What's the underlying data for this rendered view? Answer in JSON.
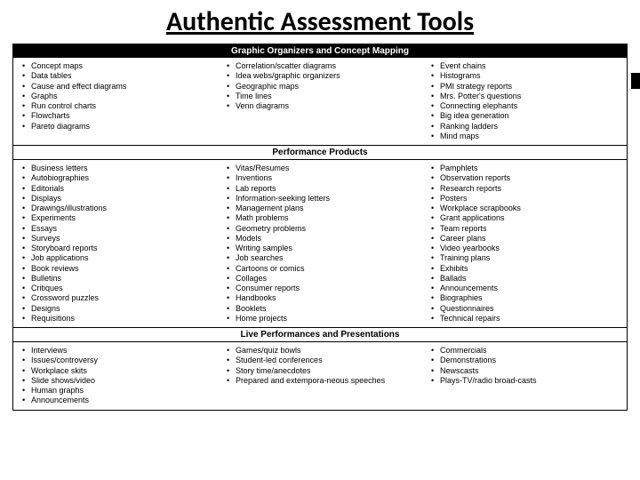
{
  "title": "Authentic Assessment Tools",
  "badge": "",
  "sections": [
    {
      "header": "Graphic Organizers and Concept Mapping",
      "header_style": "black",
      "columns": [
        [
          "Concept maps",
          "Data tables",
          "Cause and effect diagrams",
          "Graphs",
          "Run control charts",
          "Flowcharts",
          "Pareto diagrams"
        ],
        [
          "Correlation/scatter diagrams",
          "Idea webs/graphic organizers",
          "Geographic maps",
          "Time lines",
          "Venn diagrams"
        ],
        [
          "Event chains",
          "Histograms",
          "PMI strategy reports",
          "Mrs. Potter's questions",
          "Connecting elephants",
          "Big idea generation",
          "Ranking ladders",
          "Mind maps"
        ]
      ]
    },
    {
      "header": "Performance Products",
      "header_style": "white",
      "columns": [
        [
          "Business letters",
          "Autobiographies",
          "Editorials",
          "Displays",
          "Drawings/illustrations",
          "Experiments",
          "Essays",
          "Surveys",
          "Storyboard reports",
          "Job applications",
          "Book reviews",
          "Bulletins",
          "Critiques",
          "Crossword puzzles",
          "Designs",
          "Requisitions"
        ],
        [
          "Vitas/Resumes",
          "Inventions",
          "Lab reports",
          "Information-seeking letters",
          "Management plans",
          "Math problems",
          "Geometry problems",
          "Models",
          "Writing samples",
          "Job searches",
          "Cartoons or comics",
          "Collages",
          "Consumer reports",
          "Handbooks",
          "Booklets",
          "Home projects"
        ],
        [
          "Pamphlets",
          "Observation reports",
          "Research reports",
          "Posters",
          "Workplace scrapbooks",
          "Grant applications",
          "Team reports",
          "Career plans",
          "Video yearbooks",
          "Training plans",
          "Exhibits",
          "Ballads",
          "Announcements",
          "Biographies",
          "Questionnaires",
          "Technical repairs"
        ]
      ]
    },
    {
      "header": "Live Performances and Presentations",
      "header_style": "white",
      "columns": [
        [
          "Interviews",
          "Issues/controversy",
          "Workplace skits",
          "Slide shows/video",
          "Human graphs",
          "Announcements"
        ],
        [
          "Games/quiz bowls",
          "Student-led conferences",
          "Story time/anecdotes",
          "Prepared and extempora-neous speeches"
        ],
        [
          "Commercials",
          "Demonstrations",
          "Newscasts",
          "Plays-TV/radio broad-casts"
        ]
      ]
    }
  ],
  "style": {
    "page_bg": "#ffffff",
    "title_fontsize": 30,
    "title_font": "Calibri",
    "header_black_bg": "#000000",
    "header_black_fg": "#ffffff",
    "header_white_bg": "#ffffff",
    "header_white_fg": "#000000",
    "body_fontsize": 9,
    "body_font": "Verdana",
    "border_color": "#000000",
    "bullet": "•"
  }
}
